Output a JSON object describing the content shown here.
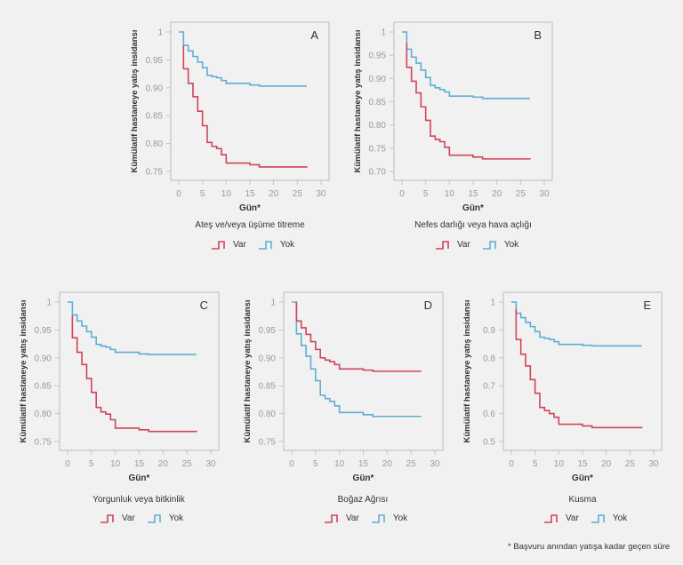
{
  "colors": {
    "var": "#d0445b",
    "yok": "#5eaed6",
    "axis": "#c4c4c4",
    "tick_text": "#9a9a9a"
  },
  "legend": {
    "var_label": "Var",
    "yok_label": "Yok"
  },
  "footnote": "* Başvuru anından yatışa kadar geçen süre",
  "chart_data": [
    {
      "type": "line",
      "step": true,
      "panel_letter": "A",
      "title": "Ateş ve/veya üşüme titreme",
      "xlabel": "Gün*",
      "ylabel": "Kümülatif hastaneye yatış insidansı",
      "xlim": [
        0,
        30
      ],
      "ylim": [
        0.75,
        1
      ],
      "xticks": [
        "0",
        "5",
        "10",
        "15",
        "20",
        "25",
        "30"
      ],
      "yticks": [
        "1",
        "0.95",
        "0.90",
        "0.85",
        "0.80",
        "0.75"
      ],
      "ytick_values": [
        1,
        0.95,
        0.9,
        0.85,
        0.8,
        0.75
      ],
      "series": [
        {
          "name": "Yok",
          "x": [
            0,
            1,
            2,
            3,
            4,
            5,
            6,
            7,
            8,
            9,
            10,
            15,
            17,
            27
          ],
          "y": [
            1,
            0.976,
            0.966,
            0.956,
            0.946,
            0.936,
            0.922,
            0.92,
            0.918,
            0.913,
            0.908,
            0.905,
            0.903,
            0.903
          ]
        },
        {
          "name": "Var",
          "x": [
            1,
            2,
            3,
            4,
            5,
            6,
            7,
            8,
            9,
            10,
            15,
            17,
            27
          ],
          "y": [
            0.934,
            0.908,
            0.884,
            0.858,
            0.832,
            0.802,
            0.795,
            0.791,
            0.78,
            0.765,
            0.762,
            0.758,
            0.757
          ]
        }
      ]
    },
    {
      "type": "line",
      "step": true,
      "panel_letter": "B",
      "title": "Nefes darlığı veya hava açlığı",
      "xlabel": "Gün*",
      "ylabel": "Kümülatif hastaneye yatış insidansı",
      "xlim": [
        0,
        30
      ],
      "ylim": [
        0.7,
        1
      ],
      "xticks": [
        "0",
        "5",
        "10",
        "15",
        "20",
        "25",
        "30"
      ],
      "yticks": [
        "1",
        "0.95",
        "0.90",
        "0.85",
        "0.80",
        "0.75",
        "0.70"
      ],
      "ytick_values": [
        1,
        0.95,
        0.9,
        0.85,
        0.8,
        0.75,
        0.7
      ],
      "series": [
        {
          "name": "Yok",
          "x": [
            0,
            1,
            2,
            3,
            4,
            5,
            6,
            7,
            8,
            9,
            10,
            15,
            17,
            27
          ],
          "y": [
            1,
            0.963,
            0.946,
            0.933,
            0.918,
            0.902,
            0.885,
            0.88,
            0.876,
            0.871,
            0.862,
            0.86,
            0.857,
            0.857
          ]
        },
        {
          "name": "Var",
          "x": [
            1,
            2,
            3,
            4,
            5,
            6,
            7,
            8,
            9,
            10,
            15,
            17,
            27
          ],
          "y": [
            0.924,
            0.894,
            0.869,
            0.839,
            0.81,
            0.776,
            0.769,
            0.764,
            0.752,
            0.735,
            0.731,
            0.727,
            0.726
          ]
        }
      ]
    },
    {
      "type": "line",
      "step": true,
      "panel_letter": "C",
      "title": "Yorgunluk veya bitkinlik",
      "xlabel": "Gün*",
      "ylabel": "Kümülatif hastaneye yatış insidansı",
      "xlim": [
        0,
        30
      ],
      "ylim": [
        0.75,
        1
      ],
      "xticks": [
        "0",
        "5",
        "10",
        "15",
        "20",
        "25",
        "30"
      ],
      "yticks": [
        "1",
        "0.95",
        "0.90",
        "0.85",
        "0.80",
        "0.75"
      ],
      "ytick_values": [
        1,
        0.95,
        0.9,
        0.85,
        0.8,
        0.75
      ],
      "series": [
        {
          "name": "Yok",
          "x": [
            0,
            1,
            2,
            3,
            4,
            5,
            6,
            7,
            8,
            9,
            10,
            15,
            17,
            27
          ],
          "y": [
            1,
            0.977,
            0.966,
            0.957,
            0.947,
            0.937,
            0.924,
            0.921,
            0.919,
            0.915,
            0.91,
            0.907,
            0.906,
            0.906
          ]
        },
        {
          "name": "Var",
          "x": [
            1,
            2,
            3,
            4,
            5,
            6,
            7,
            8,
            9,
            10,
            15,
            17,
            27
          ],
          "y": [
            0.936,
            0.91,
            0.888,
            0.863,
            0.838,
            0.811,
            0.803,
            0.799,
            0.789,
            0.774,
            0.771,
            0.768,
            0.767
          ]
        }
      ]
    },
    {
      "type": "line",
      "step": true,
      "panel_letter": "D",
      "title": "Boğaz Ağrısı",
      "xlabel": "Gün*",
      "ylabel": "Kümülatif hastaneye yatış insidansı",
      "xlim": [
        0,
        30
      ],
      "ylim": [
        0.75,
        1
      ],
      "xticks": [
        "0",
        "5",
        "10",
        "15",
        "20",
        "25",
        "30"
      ],
      "yticks": [
        "1",
        "0.95",
        "0.90",
        "0.85",
        "0.80",
        "0.75"
      ],
      "ytick_values": [
        1,
        0.95,
        0.9,
        0.85,
        0.8,
        0.75
      ],
      "series": [
        {
          "name": "Yok",
          "x": [
            0,
            1,
            2,
            3,
            4,
            5,
            6,
            7,
            8,
            9,
            10,
            15,
            17,
            27
          ],
          "y": [
            1,
            0.943,
            0.922,
            0.903,
            0.88,
            0.859,
            0.833,
            0.827,
            0.822,
            0.814,
            0.802,
            0.798,
            0.795,
            0.794
          ]
        },
        {
          "name": "Var",
          "x": [
            1,
            2,
            3,
            4,
            5,
            6,
            7,
            8,
            9,
            10,
            15,
            17,
            27
          ],
          "y": [
            0.966,
            0.954,
            0.942,
            0.929,
            0.915,
            0.9,
            0.896,
            0.893,
            0.888,
            0.88,
            0.878,
            0.876,
            0.875
          ]
        }
      ]
    },
    {
      "type": "line",
      "step": true,
      "panel_letter": "E",
      "title": "Kusma",
      "xlabel": "Gün*",
      "ylabel": "Kümülatif hastaneye yatış insidansı",
      "xlim": [
        0,
        30
      ],
      "ylim": [
        0.5,
        1
      ],
      "xticks": [
        "0",
        "5",
        "10",
        "15",
        "20",
        "25",
        "30"
      ],
      "yticks": [
        "1",
        "0.9",
        "0.8",
        "0.7",
        "0.6",
        "0.5"
      ],
      "ytick_values": [
        1,
        0.9,
        0.8,
        0.7,
        0.6,
        0.5
      ],
      "series": [
        {
          "name": "Yok",
          "x": [
            0,
            1,
            2,
            3,
            4,
            5,
            6,
            7,
            8,
            9,
            10,
            15,
            17,
            27.5
          ],
          "y": [
            1,
            0.96,
            0.944,
            0.927,
            0.912,
            0.894,
            0.874,
            0.87,
            0.866,
            0.858,
            0.848,
            0.845,
            0.843,
            0.843
          ]
        },
        {
          "name": "Var",
          "x": [
            1,
            2,
            3,
            4,
            5,
            6,
            7,
            8,
            9,
            10,
            15,
            17,
            27.5
          ],
          "y": [
            0.866,
            0.813,
            0.771,
            0.722,
            0.673,
            0.622,
            0.611,
            0.6,
            0.587,
            0.562,
            0.556,
            0.55,
            0.548
          ]
        }
      ]
    }
  ]
}
